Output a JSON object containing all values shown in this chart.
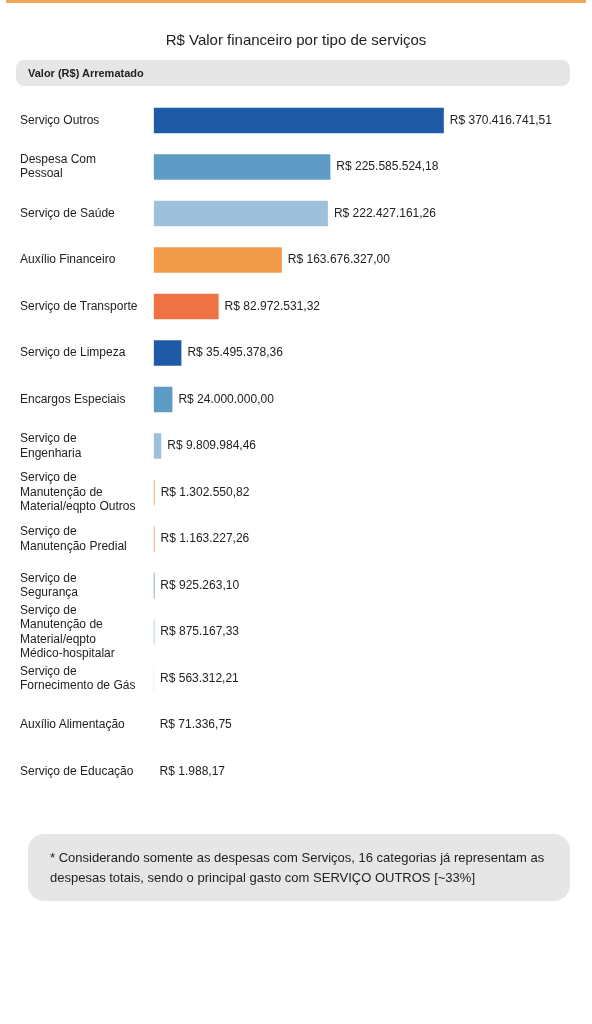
{
  "chart_data": {
    "type": "bar",
    "orientation": "horizontal",
    "title": "R$ Valor financeiro por tipo de serviços",
    "subtitle": "Valor (R$) Arrematado",
    "categories": [
      "Serviço Outros",
      "Despesa Com Pessoal",
      "Serviço de Saúde",
      "Auxílio Financeiro",
      "Serviço de Transporte",
      "Serviço de Limpeza",
      "Encargos Especiais",
      "Serviço de Engenharia",
      "Serviço de Manutenção de Material/eqpto Outros",
      "Serviço de Manutenção Predial",
      "Serviço de Segurança",
      "Serviço de Manutenção de Material/eqpto Médico-hospitalar",
      "Serviço de Fornecimento de Gás",
      "Auxílio Alimentação",
      "Serviço de Educação"
    ],
    "values": [
      370416741.51,
      225585524.18,
      222427161.26,
      163676327.0,
      82972531.32,
      35495378.36,
      24000000.0,
      9809984.46,
      1302550.82,
      1163227.26,
      925263.1,
      875167.33,
      563312.21,
      71336.75,
      1988.17
    ],
    "value_labels": [
      "R$ 370.416.741,51",
      "R$ 225.585.524,18",
      "R$ 222.427.161,26",
      "R$ 163.676.327,00",
      "R$ 82.972.531,32",
      "R$ 35.495.378,36",
      "R$ 24.000.000,00",
      "R$ 9.809.984,46",
      "R$ 1.302.550,82",
      "R$ 1.163.227,26",
      "R$ 925.263,10",
      "R$ 875.167,33",
      "R$ 563.312,21",
      "R$ 71.336,75",
      "R$ 1.988,17"
    ],
    "colors": [
      "#1f5aa6",
      "#5f9cc5",
      "#9dc1da",
      "#f29b4b",
      "#ef7245",
      "#1f5aa6",
      "#5f9cc5",
      "#9dc1da",
      "#f29b4b",
      "#ef7245",
      "#1f5aa6",
      "#5f9cc5",
      "#9dc1da",
      "#f29b4b",
      "#ef7245"
    ],
    "tick_labels": "y",
    "annotations": [
      "* Considerando somente as despesas com Serviços, 16 categorias já representam as despesas totais, sendo o principal gasto com SERVIÇO OUTROS [~33%]"
    ]
  }
}
